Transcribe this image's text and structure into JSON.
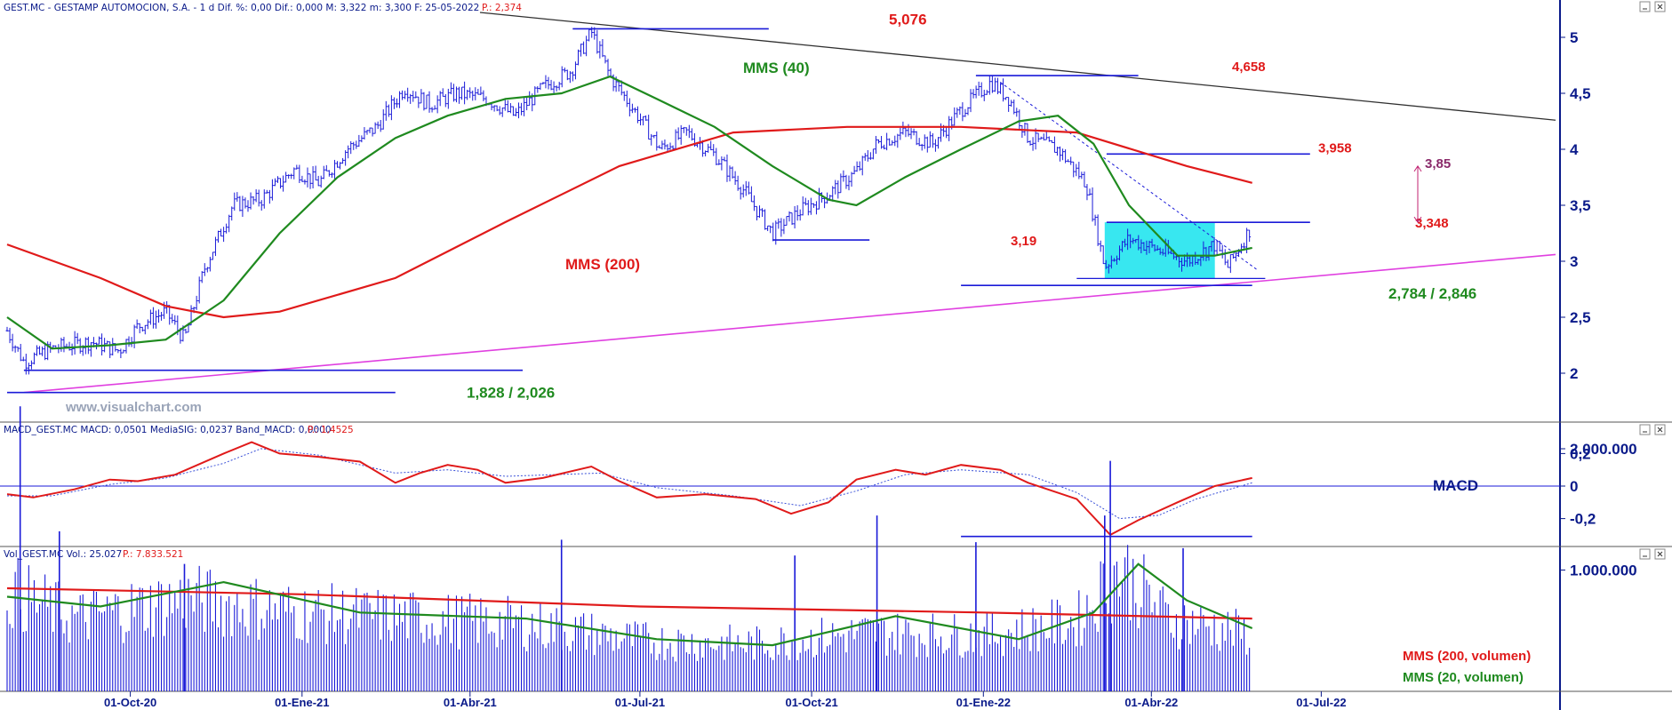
{
  "header": {
    "price": "GEST.MC - GESTAMP AUTOMOCION, S.A. -   1 d  Dif. %: 0,00  Dif.: 0,000  M: 3,322  m: 3,300  F: 25-05-2022",
    "price_p": "P.: 2,374",
    "macd": "MACD_GEST.MC  MACD: 0,0501  MediaSIG: 0,0237  Band_MACD: 0,0000",
    "macd_p": "P.: 1,4525",
    "vol": "Vol_GEST.MC  Vol.: 25.027",
    "vol_p": "P.: 7.833.521"
  },
  "watermark": "www.visualchart.com",
  "colors": {
    "price_bars": "#1a1ad8",
    "mms40": "#1f8a1f",
    "mms200": "#e01a1a",
    "support_line": "#e040e0",
    "resistance_line": "#303030",
    "levels": "#1a1ad8",
    "box": "#22e4ee",
    "axis_text": "#0a1a8a",
    "target_arrow": "#c02070"
  },
  "chart_data": [
    {
      "type": "candlestick",
      "panel": "price",
      "x_labels": [
        "01-Oct-20",
        "01-Ene-21",
        "01-Abr-21",
        "01-Jul-21",
        "01-Oct-21",
        "01-Ene-22",
        "01-Abr-22",
        "01-Jul-22"
      ],
      "y_ticks": [
        "5",
        "4,5",
        "4",
        "3,5",
        "3",
        "2,5",
        "2"
      ],
      "ylim": [
        1.65,
        5.38
      ],
      "price_path": [
        [
          "2020-07-27",
          2.38
        ],
        [
          "2020-08-05",
          2.1
        ],
        [
          "2020-08-20",
          2.22
        ],
        [
          "2020-09-10",
          2.28
        ],
        [
          "2020-09-25",
          2.2
        ],
        [
          "2020-10-05",
          2.42
        ],
        [
          "2020-10-20",
          2.55
        ],
        [
          "2020-10-30",
          2.3
        ],
        [
          "2020-11-10",
          2.95
        ],
        [
          "2020-11-25",
          3.5
        ],
        [
          "2020-12-10",
          3.55
        ],
        [
          "2020-12-28",
          3.82
        ],
        [
          "2021-01-10",
          3.7
        ],
        [
          "2021-01-25",
          4.0
        ],
        [
          "2021-02-10",
          4.2
        ],
        [
          "2021-02-25",
          4.55
        ],
        [
          "2021-03-10",
          4.4
        ],
        [
          "2021-03-25",
          4.5
        ],
        [
          "2021-04-10",
          4.45
        ],
        [
          "2021-04-25",
          4.3
        ],
        [
          "2021-05-10",
          4.55
        ],
        [
          "2021-05-25",
          4.7
        ],
        [
          "2021-06-05",
          5.05
        ],
        [
          "2021-06-15",
          4.65
        ],
        [
          "2021-06-30",
          4.3
        ],
        [
          "2021-07-12",
          4.0
        ],
        [
          "2021-07-26",
          4.15
        ],
        [
          "2021-08-10",
          3.95
        ],
        [
          "2021-08-25",
          3.65
        ],
        [
          "2021-09-10",
          3.25
        ],
        [
          "2021-09-25",
          3.45
        ],
        [
          "2021-10-10",
          3.6
        ],
        [
          "2021-10-25",
          3.8
        ],
        [
          "2021-11-05",
          4.05
        ],
        [
          "2021-11-20",
          4.15
        ],
        [
          "2021-12-05",
          4.05
        ],
        [
          "2021-12-20",
          4.35
        ],
        [
          "2022-01-05",
          4.6
        ],
        [
          "2022-01-15",
          4.45
        ],
        [
          "2022-01-25",
          4.1
        ],
        [
          "2022-02-10",
          4.0
        ],
        [
          "2022-02-25",
          3.7
        ],
        [
          "2022-03-07",
          2.95
        ],
        [
          "2022-03-20",
          3.2
        ],
        [
          "2022-04-05",
          3.1
        ],
        [
          "2022-04-20",
          3.0
        ],
        [
          "2022-05-05",
          3.15
        ],
        [
          "2022-05-12",
          2.95
        ],
        [
          "2022-05-25",
          3.32
        ]
      ],
      "series": [
        {
          "name": "MMS (40)",
          "values": [
            [
              "2020-07-27",
              2.5
            ],
            [
              "2020-08-20",
              2.22
            ],
            [
              "2020-09-20",
              2.25
            ],
            [
              "2020-10-20",
              2.3
            ],
            [
              "2020-11-20",
              2.65
            ],
            [
              "2020-12-20",
              3.25
            ],
            [
              "2021-01-20",
              3.75
            ],
            [
              "2021-02-20",
              4.1
            ],
            [
              "2021-03-20",
              4.3
            ],
            [
              "2021-04-20",
              4.45
            ],
            [
              "2021-05-20",
              4.5
            ],
            [
              "2021-06-15",
              4.65
            ],
            [
              "2021-07-10",
              4.45
            ],
            [
              "2021-08-10",
              4.2
            ],
            [
              "2021-09-10",
              3.85
            ],
            [
              "2021-10-10",
              3.55
            ],
            [
              "2021-10-25",
              3.5
            ],
            [
              "2021-11-20",
              3.75
            ],
            [
              "2021-12-20",
              4.0
            ],
            [
              "2022-01-20",
              4.25
            ],
            [
              "2022-02-10",
              4.3
            ],
            [
              "2022-03-01",
              4.05
            ],
            [
              "2022-03-20",
              3.5
            ],
            [
              "2022-04-15",
              3.05
            ],
            [
              "2022-05-05",
              3.05
            ],
            [
              "2022-05-25",
              3.12
            ]
          ]
        },
        {
          "name": "MMS (200)",
          "values": [
            [
              "2020-07-27",
              3.15
            ],
            [
              "2020-09-15",
              2.85
            ],
            [
              "2020-10-20",
              2.6
            ],
            [
              "2020-11-20",
              2.5
            ],
            [
              "2020-12-20",
              2.55
            ],
            [
              "2021-02-20",
              2.85
            ],
            [
              "2021-04-20",
              3.35
            ],
            [
              "2021-06-20",
              3.85
            ],
            [
              "2021-08-20",
              4.15
            ],
            [
              "2021-10-20",
              4.2
            ],
            [
              "2021-12-20",
              4.2
            ],
            [
              "2022-02-20",
              4.15
            ],
            [
              "2022-04-20",
              3.85
            ],
            [
              "2022-05-25",
              3.7
            ]
          ]
        }
      ],
      "levels": [
        {
          "label": "5,076",
          "value": 5.076
        },
        {
          "label": "4,658",
          "value": 4.658
        },
        {
          "label": "3,958",
          "value": 3.958
        },
        {
          "label": "3,348",
          "value": 3.348
        },
        {
          "label": "3,19",
          "value": 3.19
        },
        {
          "label": "2,784 / 2,846",
          "value": 2.784
        },
        {
          "label": "1,828 / 2,026",
          "value": 1.828
        }
      ],
      "target": {
        "label": "3,85",
        "value": 3.85
      },
      "box": {
        "from": "2022-03-07",
        "to": "2022-05-05",
        "low": 2.846,
        "high": 3.348
      },
      "annotations": [
        "MMS (40)",
        "MMS (200)"
      ]
    },
    {
      "type": "line",
      "panel": "macd",
      "label": "MACD",
      "y_ticks": [
        "0,2",
        "0",
        "-0,2"
      ],
      "ylim": [
        -0.34,
        0.31
      ],
      "series": [
        {
          "name": "MACD",
          "values": [
            [
              "2020-07-27",
              -0.05
            ],
            [
              "2020-08-10",
              -0.07
            ],
            [
              "2020-09-01",
              -0.02
            ],
            [
              "2020-09-20",
              0.04
            ],
            [
              "2020-10-05",
              0.03
            ],
            [
              "2020-10-25",
              0.07
            ],
            [
              "2020-11-20",
              0.2
            ],
            [
              "2020-12-05",
              0.27
            ],
            [
              "2020-12-20",
              0.2
            ],
            [
              "2021-01-10",
              0.18
            ],
            [
              "2021-02-01",
              0.15
            ],
            [
              "2021-02-20",
              0.02
            ],
            [
              "2021-03-05",
              0.08
            ],
            [
              "2021-03-20",
              0.13
            ],
            [
              "2021-04-05",
              0.1
            ],
            [
              "2021-04-20",
              0.02
            ],
            [
              "2021-05-10",
              0.05
            ],
            [
              "2021-06-05",
              0.12
            ],
            [
              "2021-06-20",
              0.03
            ],
            [
              "2021-07-10",
              -0.07
            ],
            [
              "2021-08-05",
              -0.05
            ],
            [
              "2021-09-01",
              -0.08
            ],
            [
              "2021-09-20",
              -0.17
            ],
            [
              "2021-10-10",
              -0.1
            ],
            [
              "2021-10-25",
              0.04
            ],
            [
              "2021-11-15",
              0.1
            ],
            [
              "2021-12-01",
              0.07
            ],
            [
              "2021-12-20",
              0.13
            ],
            [
              "2022-01-10",
              0.1
            ],
            [
              "2022-01-25",
              0.02
            ],
            [
              "2022-02-20",
              -0.08
            ],
            [
              "2022-03-10",
              -0.3
            ],
            [
              "2022-03-25",
              -0.21
            ],
            [
              "2022-04-15",
              -0.1
            ],
            [
              "2022-05-05",
              0.0
            ],
            [
              "2022-05-25",
              0.05
            ]
          ]
        },
        {
          "name": "MediaSIG",
          "values": [
            [
              "2020-07-27",
              -0.06
            ],
            [
              "2020-08-20",
              -0.06
            ],
            [
              "2020-09-20",
              0.01
            ],
            [
              "2020-10-20",
              0.05
            ],
            [
              "2020-11-20",
              0.14
            ],
            [
              "2020-12-10",
              0.23
            ],
            [
              "2021-01-10",
              0.19
            ],
            [
              "2021-02-20",
              0.08
            ],
            [
              "2021-03-20",
              0.1
            ],
            [
              "2021-04-20",
              0.06
            ],
            [
              "2021-06-10",
              0.08
            ],
            [
              "2021-07-10",
              -0.01
            ],
            [
              "2021-08-20",
              -0.06
            ],
            [
              "2021-09-25",
              -0.12
            ],
            [
              "2021-10-25",
              -0.03
            ],
            [
              "2021-11-20",
              0.07
            ],
            [
              "2021-12-20",
              0.1
            ],
            [
              "2022-01-25",
              0.07
            ],
            [
              "2022-02-20",
              -0.04
            ],
            [
              "2022-03-15",
              -0.2
            ],
            [
              "2022-04-05",
              -0.18
            ],
            [
              "2022-04-25",
              -0.08
            ],
            [
              "2022-05-25",
              0.02
            ]
          ]
        }
      ],
      "levels": [
        {
          "value": -0.31
        }
      ]
    },
    {
      "type": "bar",
      "panel": "volume",
      "y_ticks": [
        "2.000.000",
        "1.000.000"
      ],
      "ylim": [
        0,
        2500000
      ],
      "volume_profile": [
        [
          "2020-07-27",
          900000
        ],
        [
          "2020-09-01",
          650000
        ],
        [
          "2020-11-01",
          820000
        ],
        [
          "2021-01-01",
          700000
        ],
        [
          "2021-03-01",
          650000
        ],
        [
          "2021-05-01",
          600000
        ],
        [
          "2021-07-01",
          450000
        ],
        [
          "2021-09-01",
          420000
        ],
        [
          "2021-11-01",
          520000
        ],
        [
          "2022-01-01",
          500000
        ],
        [
          "2022-02-20",
          620000
        ],
        [
          "2022-03-15",
          1100000
        ],
        [
          "2022-04-10",
          650000
        ],
        [
          "2022-05-25",
          500000
        ]
      ],
      "spikes": [
        [
          "2020-08-03",
          2350000
        ],
        [
          "2020-08-24",
          1320000
        ],
        [
          "2020-10-30",
          1050000
        ],
        [
          "2021-05-20",
          1250000
        ],
        [
          "2021-09-22",
          1120000
        ],
        [
          "2021-11-05",
          1450000
        ],
        [
          "2021-12-28",
          1230000
        ],
        [
          "2022-03-10",
          1900000
        ],
        [
          "2022-03-07",
          1450000
        ],
        [
          "2022-04-18",
          1180000
        ]
      ],
      "series": [
        {
          "name": "MMS (200, volumen)",
          "values": [
            [
              "2020-07-27",
              850000
            ],
            [
              "2021-01-01",
              800000
            ],
            [
              "2021-07-01",
              700000
            ],
            [
              "2022-01-01",
              650000
            ],
            [
              "2022-05-25",
              600000
            ]
          ]
        },
        {
          "name": "MMS (20, volumen)",
          "values": [
            [
              "2020-07-27",
              780000
            ],
            [
              "2020-09-15",
              700000
            ],
            [
              "2020-11-20",
              900000
            ],
            [
              "2021-02-01",
              650000
            ],
            [
              "2021-05-01",
              600000
            ],
            [
              "2021-07-10",
              430000
            ],
            [
              "2021-09-10",
              380000
            ],
            [
              "2021-11-15",
              620000
            ],
            [
              "2022-01-20",
              430000
            ],
            [
              "2022-03-01",
              650000
            ],
            [
              "2022-03-25",
              1050000
            ],
            [
              "2022-04-20",
              750000
            ],
            [
              "2022-05-25",
              520000
            ]
          ]
        }
      ]
    }
  ]
}
